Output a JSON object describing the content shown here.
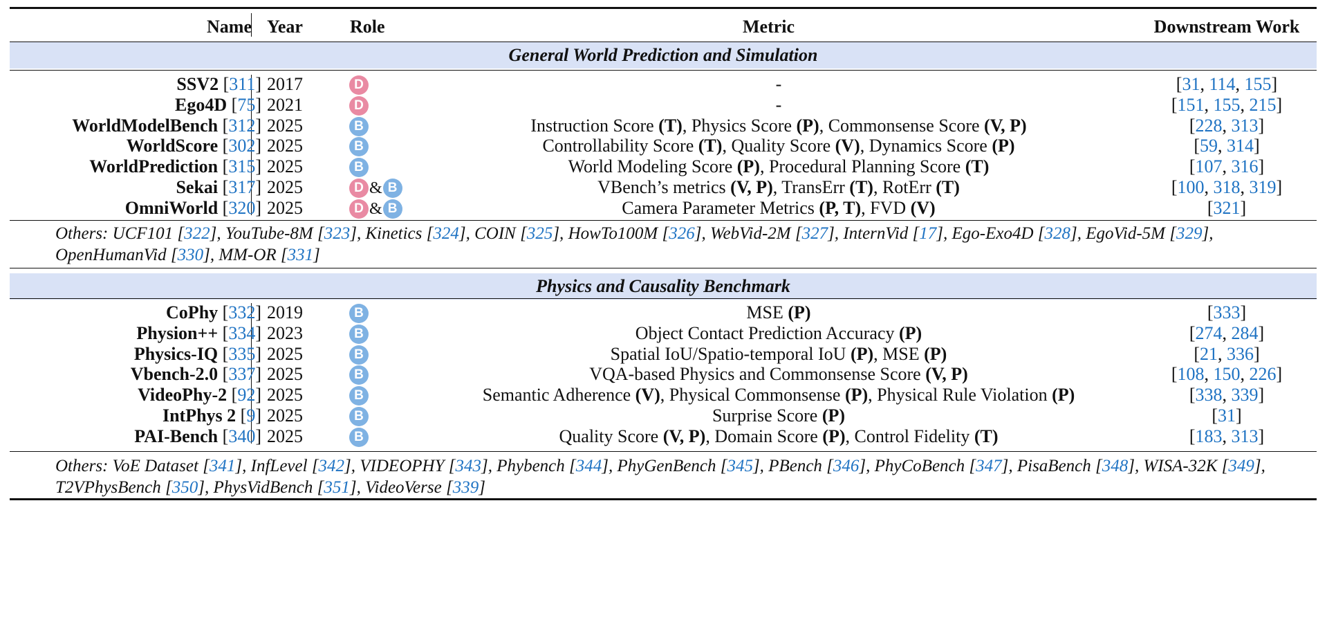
{
  "header": {
    "name": "Name",
    "year": "Year",
    "role": "Role",
    "metric": "Metric",
    "downstream": "Downstream Work"
  },
  "role_badges": {
    "dataset": "D",
    "benchmark": "B",
    "and": "&"
  },
  "colors": {
    "band": "#d9e2f6",
    "cite": "#1f73c3",
    "dataset_badge": "#e98aa3",
    "benchmark_badge": "#7fb2e3"
  },
  "sections": [
    {
      "title": "General World Prediction and Simulation",
      "rows": [
        {
          "name": "SSV2",
          "ref": "311",
          "year": "2017",
          "roles": [
            "D"
          ],
          "metric": [
            [
              "-",
              false
            ]
          ],
          "downstream": [
            "31",
            "114",
            "155"
          ]
        },
        {
          "name": "Ego4D",
          "ref": "75",
          "year": "2021",
          "roles": [
            "D"
          ],
          "metric": [
            [
              "-",
              false
            ]
          ],
          "downstream": [
            "151",
            "155",
            "215"
          ]
        },
        {
          "name": "WorldModelBench",
          "ref": "312",
          "year": "2025",
          "roles": [
            "B"
          ],
          "metric": [
            [
              "Instruction Score ",
              false
            ],
            [
              "(T)",
              true
            ],
            [
              ", Physics Score ",
              false
            ],
            [
              "(P)",
              true
            ],
            [
              ", Commonsense Score ",
              false
            ],
            [
              "(V, P)",
              true
            ]
          ],
          "downstream": [
            "228",
            "313"
          ]
        },
        {
          "name": "WorldScore",
          "ref": "302",
          "year": "2025",
          "roles": [
            "B"
          ],
          "metric": [
            [
              "Controllability Score ",
              false
            ],
            [
              "(T)",
              true
            ],
            [
              ", Quality Score ",
              false
            ],
            [
              "(V)",
              true
            ],
            [
              ", Dynamics Score ",
              false
            ],
            [
              "(P)",
              true
            ]
          ],
          "downstream": [
            "59",
            "314"
          ]
        },
        {
          "name": "WorldPrediction",
          "ref": "315",
          "year": "2025",
          "roles": [
            "B"
          ],
          "metric": [
            [
              "World Modeling Score ",
              false
            ],
            [
              "(P)",
              true
            ],
            [
              ", Procedural Planning Score ",
              false
            ],
            [
              "(T)",
              true
            ]
          ],
          "downstream": [
            "107",
            "316"
          ]
        },
        {
          "name": "Sekai",
          "ref": "317",
          "year": "2025",
          "roles": [
            "D",
            "B"
          ],
          "metric": [
            [
              "VBench’s metrics ",
              false
            ],
            [
              "(V, P)",
              true
            ],
            [
              ", TransErr ",
              false
            ],
            [
              "(T)",
              true
            ],
            [
              ", RotErr ",
              false
            ],
            [
              "(T)",
              true
            ]
          ],
          "downstream": [
            "100",
            "318",
            "319"
          ]
        },
        {
          "name": "OmniWorld",
          "ref": "320",
          "year": "2025",
          "roles": [
            "D",
            "B"
          ],
          "metric": [
            [
              "Camera Parameter Metrics ",
              false
            ],
            [
              "(P, T)",
              true
            ],
            [
              ", FVD ",
              false
            ],
            [
              "(V)",
              true
            ]
          ],
          "downstream": [
            "321"
          ]
        }
      ],
      "others": [
        [
          "UCF101",
          "322"
        ],
        [
          "YouTube-8M",
          "323"
        ],
        [
          "Kinetics",
          "324"
        ],
        [
          "COIN",
          "325"
        ],
        [
          "HowTo100M",
          "326"
        ],
        [
          "WebVid-2M",
          "327"
        ],
        [
          "InternVid",
          "17"
        ],
        [
          "Ego-Exo4D",
          "328"
        ],
        [
          "EgoVid-5M",
          "329"
        ],
        [
          "OpenHumanVid",
          "330"
        ],
        [
          "MM-OR",
          "331"
        ]
      ]
    },
    {
      "title": "Physics and Causality Benchmark",
      "rows": [
        {
          "name": "CoPhy",
          "ref": "332",
          "year": "2019",
          "roles": [
            "B"
          ],
          "metric": [
            [
              "MSE ",
              false
            ],
            [
              "(P)",
              true
            ]
          ],
          "downstream": [
            "333"
          ]
        },
        {
          "name": "Physion++",
          "ref": "334",
          "year": "2023",
          "roles": [
            "B"
          ],
          "metric": [
            [
              "Object Contact Prediction Accuracy ",
              false
            ],
            [
              "(P)",
              true
            ]
          ],
          "downstream": [
            "274",
            "284"
          ]
        },
        {
          "name": "Physics-IQ",
          "ref": "335",
          "year": "2025",
          "roles": [
            "B"
          ],
          "metric": [
            [
              "Spatial IoU/Spatio-temporal IoU ",
              false
            ],
            [
              "(P)",
              true
            ],
            [
              ", MSE ",
              false
            ],
            [
              "(P)",
              true
            ]
          ],
          "downstream": [
            "21",
            "336"
          ]
        },
        {
          "name": "Vbench-2.0",
          "ref": "337",
          "year": "2025",
          "roles": [
            "B"
          ],
          "metric": [
            [
              "VQA-based Physics and Commonsense Score ",
              false
            ],
            [
              "(V, P)",
              true
            ]
          ],
          "downstream": [
            "108",
            "150",
            "226"
          ]
        },
        {
          "name": "VideoPhy-2",
          "ref": "92",
          "year": "2025",
          "roles": [
            "B"
          ],
          "metric": [
            [
              "Semantic Adherence ",
              false
            ],
            [
              "(V)",
              true
            ],
            [
              ", Physical Commonsense ",
              false
            ],
            [
              "(P)",
              true
            ],
            [
              ", Physical Rule Violation ",
              false
            ],
            [
              "(P)",
              true
            ]
          ],
          "downstream": [
            "338",
            "339"
          ]
        },
        {
          "name": "IntPhys 2",
          "ref": "9",
          "year": "2025",
          "roles": [
            "B"
          ],
          "metric": [
            [
              "Surprise Score ",
              false
            ],
            [
              "(P)",
              true
            ]
          ],
          "downstream": [
            "31"
          ]
        },
        {
          "name": "PAI-Bench",
          "ref": "340",
          "year": "2025",
          "roles": [
            "B"
          ],
          "metric": [
            [
              "Quality Score ",
              false
            ],
            [
              "(V, P)",
              true
            ],
            [
              ", Domain Score ",
              false
            ],
            [
              "(P)",
              true
            ],
            [
              ", Control Fidelity ",
              false
            ],
            [
              "(T)",
              true
            ]
          ],
          "downstream": [
            "183",
            "313"
          ]
        }
      ],
      "others": [
        [
          "VoE Dataset",
          "341"
        ],
        [
          "InfLevel",
          "342"
        ],
        [
          "VIDEOPHY",
          "343"
        ],
        [
          "Phybench",
          "344"
        ],
        [
          "PhyGenBench",
          "345"
        ],
        [
          "PBench",
          "346"
        ],
        [
          "PhyCoBench",
          "347"
        ],
        [
          "PisaBench",
          "348"
        ],
        [
          "WISA-32K",
          "349"
        ],
        [
          "T2VPhysBench",
          "350"
        ],
        [
          "PhysVidBench",
          "351"
        ],
        [
          "VideoVerse",
          "339"
        ]
      ]
    }
  ],
  "others_label": "Others:"
}
